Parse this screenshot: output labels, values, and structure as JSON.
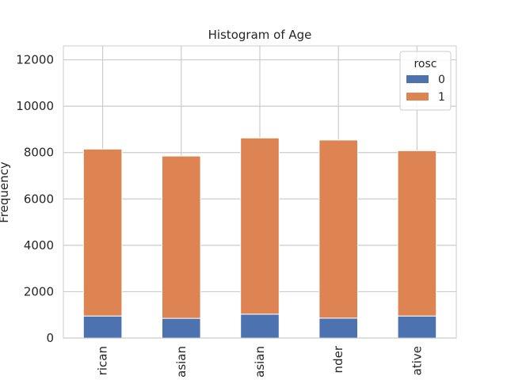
{
  "chart_data": {
    "type": "bar",
    "stacked": true,
    "title": "Histogram of Age",
    "xlabel": "",
    "ylabel": "Frequency",
    "categories": [
      "rican",
      "asian",
      "asian",
      "nder",
      "ative"
    ],
    "series": [
      {
        "name": "0",
        "values": [
          950,
          850,
          1030,
          860,
          950
        ],
        "color": "#4c72b0"
      },
      {
        "name": "1",
        "values": [
          7200,
          7000,
          7600,
          7680,
          7130
        ],
        "color": "#dd8452"
      }
    ],
    "ylim": [
      0,
      12600
    ],
    "yticks": [
      0,
      2000,
      4000,
      6000,
      8000,
      10000,
      12000
    ],
    "grid": true,
    "legend": {
      "title": "rosc",
      "placement": "top-right"
    }
  }
}
